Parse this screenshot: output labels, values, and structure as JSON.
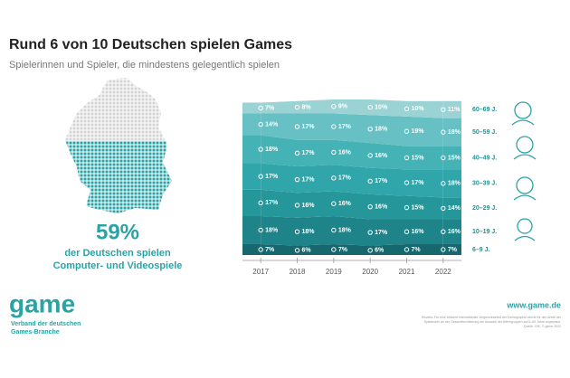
{
  "chart_data": {
    "type": "area",
    "title": "Rund 6 von 10 Deutschen spielen Games",
    "subtitle": "Spielerinnen und Spieler, die mindestens gelegentlich spielen",
    "x": [
      2017,
      2018,
      2019,
      2020,
      2021,
      2022
    ],
    "xlim": [
      2016.5,
      2022.5
    ],
    "xticks": [
      2017,
      2018,
      2019,
      2020,
      2021,
      2022
    ],
    "ylim": [
      0,
      100
    ],
    "series": [
      {
        "name": "6–9 J.",
        "color": "#17686e",
        "values": [
          7,
          6,
          7,
          6,
          7,
          7
        ],
        "value_labels": [
          "7%",
          "6%",
          "7%",
          "6%",
          "7%",
          "7%"
        ]
      },
      {
        "name": "10–19 J.",
        "color": "#1f8489",
        "values": [
          18,
          18,
          18,
          17,
          16,
          16
        ],
        "value_labels": [
          "18%",
          "18%",
          "18%",
          "17%",
          "16%",
          "16%"
        ]
      },
      {
        "name": "20–29 J.",
        "color": "#25979b",
        "values": [
          17,
          16,
          16,
          16,
          15,
          14
        ],
        "value_labels": [
          "17%",
          "16%",
          "16%",
          "16%",
          "15%",
          "14%"
        ]
      },
      {
        "name": "30–39 J.",
        "color": "#31a6aa",
        "values": [
          17,
          17,
          17,
          17,
          17,
          18
        ],
        "value_labels": [
          "17%",
          "17%",
          "17%",
          "17%",
          "17%",
          "18%"
        ]
      },
      {
        "name": "40–49 J.",
        "color": "#45b2b6",
        "values": [
          18,
          17,
          16,
          16,
          15,
          15
        ],
        "value_labels": [
          "18%",
          "17%",
          "16%",
          "16%",
          "15%",
          "15%"
        ]
      },
      {
        "name": "50–59 J.",
        "color": "#67c0c3",
        "values": [
          14,
          17,
          17,
          18,
          19,
          18
        ],
        "value_labels": [
          "14%",
          "17%",
          "17%",
          "18%",
          "19%",
          "18%"
        ]
      },
      {
        "name": "60–69 J.",
        "color": "#9bd3d5",
        "values": [
          7,
          8,
          9,
          10,
          10,
          11
        ],
        "value_labels": [
          "7%",
          "8%",
          "9%",
          "10%",
          "10%",
          "11%"
        ]
      }
    ]
  },
  "highlight": {
    "value": "59%",
    "line1": "der Deutschen spielen",
    "line2": "Computer- und Videospiele"
  },
  "footer": {
    "logo": "game",
    "org_line1": "Verband der deutschen",
    "org_line2": "Games-Branche",
    "url": "www.game.de",
    "note1": "Hinweis: Für eine bessere internationale Vergleichbarkeit der Demographie wurde für den Anteil der",
    "note2": "Spielenden an der Gesamtbevölkerung die Auswahl der Altersgruppen auf 6–69 Jahre angepasst.",
    "note3": "Quelle: GfK, © game 2022"
  }
}
